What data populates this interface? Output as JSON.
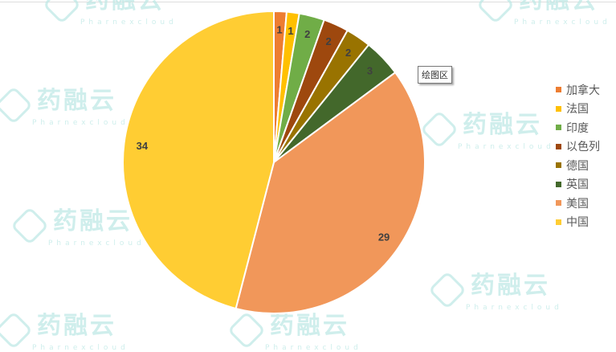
{
  "watermark": {
    "brand": "药融云",
    "sub": "Pharnexcloud"
  },
  "tooltip": "绘图区",
  "chart_data": {
    "type": "pie",
    "categories": [
      "加拿大",
      "法国",
      "印度",
      "以色列",
      "德国",
      "英国",
      "美国",
      "中国"
    ],
    "values": [
      1,
      1,
      2,
      2,
      2,
      3,
      29,
      34
    ],
    "colors": [
      "#ED7D31",
      "#FFC000",
      "#70AD47",
      "#9E480E",
      "#997300",
      "#43682B",
      "#F1975A",
      "#FFCD33"
    ],
    "data_labels": true,
    "legend": "right",
    "start": "top, clockwise"
  }
}
